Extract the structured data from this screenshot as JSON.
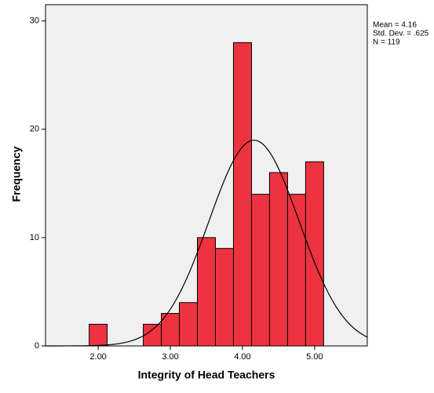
{
  "chart_data": {
    "type": "histogram",
    "x_label": "Integrity of Head Teachers",
    "y_label": "Frequency",
    "bins": [
      1.875,
      2.125,
      2.375,
      2.625,
      2.875,
      3.125,
      3.375,
      3.625,
      3.875,
      4.125,
      4.375,
      4.625,
      4.875,
      5.125
    ],
    "values": [
      2,
      0,
      0,
      2,
      3,
      4,
      10,
      9,
      28,
      14,
      16,
      14,
      17
    ],
    "color": "#ee3340",
    "xlim": [
      1.27,
      5.73
    ],
    "ylim": [
      0,
      31.5
    ],
    "xticks": [
      {
        "value": 2,
        "label": "2.00"
      },
      {
        "value": 3,
        "label": "3.00"
      },
      {
        "value": 4,
        "label": "4.00"
      },
      {
        "value": 5,
        "label": "5.00"
      }
    ],
    "yticks": [
      0,
      10,
      20,
      30
    ],
    "normal_curve": {
      "mean": 4.16,
      "sd": 0.625,
      "n": 119
    },
    "annotations": [
      "Mean = 4.16",
      "Std. Dev. = .625",
      "N = 119"
    ]
  }
}
